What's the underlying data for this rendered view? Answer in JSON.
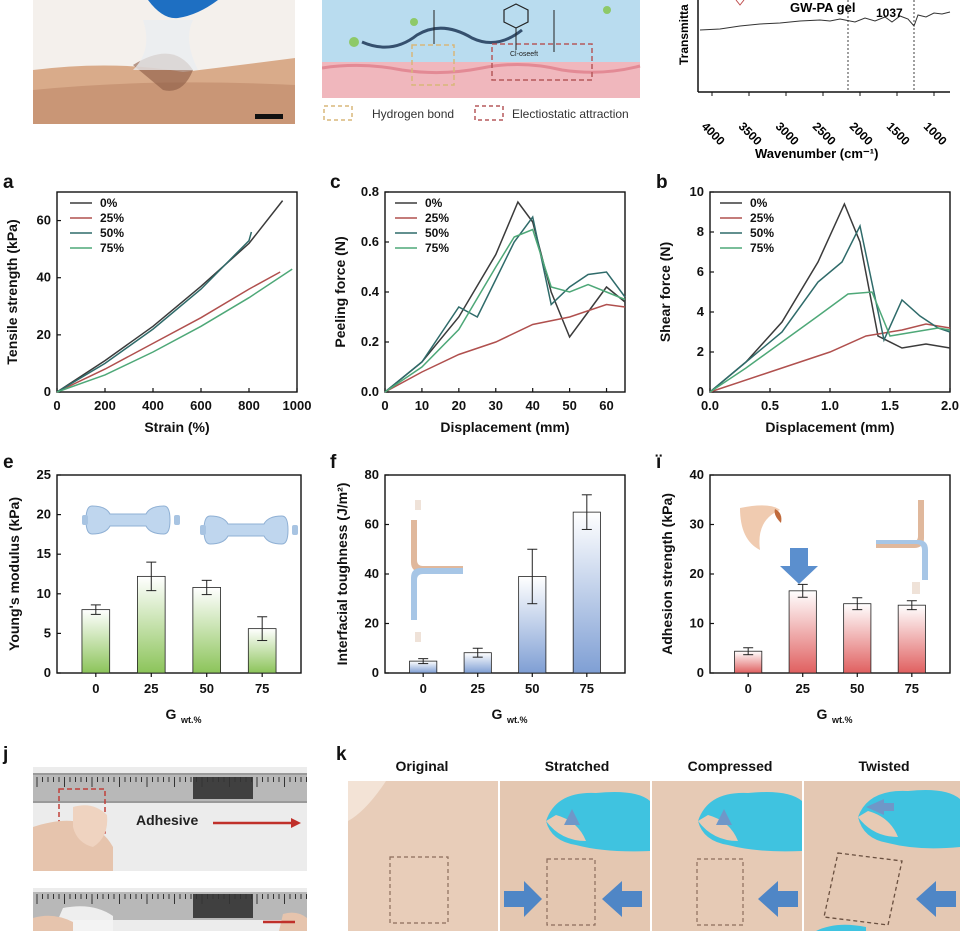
{
  "top_row": {
    "schematic_legend": {
      "hbond": "Hydrogen bond",
      "electrostatic": "Electiostatic attraction"
    },
    "schematic_text": "Cl-oseeft",
    "ftir": {
      "title": "GW-PA gel",
      "peak": "1037",
      "ylabel": "Transmitta",
      "xlabel": "Wavenumber (cm⁻¹)",
      "xticks": [
        "4000",
        "3500",
        "3000",
        "2500",
        "2000",
        "1500",
        "1000"
      ]
    }
  },
  "panels": {
    "a": "a",
    "c": "c",
    "b": "b",
    "e": "e",
    "f": "f",
    "i": "ї",
    "j": "j",
    "k": "k"
  },
  "legend": [
    "0%",
    "25%",
    "50%",
    "75%"
  ],
  "series_colors": [
    "#3b3b3b",
    "#b0504e",
    "#2f6b6a",
    "#4ea878"
  ],
  "chart_data": [
    {
      "id": "a",
      "type": "line",
      "xlabel": "Strain (%)",
      "ylabel": "Tensile strength (kPa)",
      "xlim": [
        0,
        1000
      ],
      "ylim": [
        0,
        70
      ],
      "xticks": [
        0,
        200,
        400,
        600,
        800,
        1000
      ],
      "yticks": [
        0,
        20,
        40,
        60
      ],
      "series": [
        {
          "name": "0%",
          "x": [
            0,
            200,
            400,
            600,
            800,
            940
          ],
          "y": [
            0,
            11,
            23,
            37,
            52,
            67
          ]
        },
        {
          "name": "25%",
          "x": [
            0,
            200,
            400,
            600,
            800,
            930
          ],
          "y": [
            0,
            8,
            17,
            26,
            36,
            42
          ]
        },
        {
          "name": "50%",
          "x": [
            0,
            200,
            400,
            600,
            800,
            810
          ],
          "y": [
            0,
            10,
            22,
            36,
            53,
            56
          ]
        },
        {
          "name": "75%",
          "x": [
            0,
            200,
            400,
            600,
            800,
            980
          ],
          "y": [
            0,
            6,
            14,
            23,
            33,
            43
          ]
        }
      ]
    },
    {
      "id": "c",
      "type": "line",
      "xlabel": "Displacement (mm)",
      "ylabel": "Peeling force (N)",
      "xlim": [
        0,
        65
      ],
      "ylim": [
        0,
        0.8
      ],
      "xticks": [
        0,
        10,
        20,
        30,
        40,
        50,
        60
      ],
      "yticks": [
        "0.0",
        "0.2",
        "0.4",
        "0.6",
        "0.8"
      ],
      "series": [
        {
          "name": "0%",
          "x": [
            0,
            10,
            20,
            30,
            36,
            40,
            45,
            50,
            55,
            60,
            65
          ],
          "y": [
            0,
            0.12,
            0.3,
            0.55,
            0.76,
            0.68,
            0.4,
            0.22,
            0.32,
            0.42,
            0.36
          ]
        },
        {
          "name": "25%",
          "x": [
            0,
            10,
            20,
            30,
            40,
            50,
            60,
            65
          ],
          "y": [
            0,
            0.08,
            0.15,
            0.2,
            0.27,
            0.3,
            0.35,
            0.34
          ]
        },
        {
          "name": "50%",
          "x": [
            0,
            10,
            20,
            25,
            30,
            35,
            40,
            45,
            50,
            55,
            60,
            65
          ],
          "y": [
            0,
            0.12,
            0.34,
            0.3,
            0.45,
            0.6,
            0.7,
            0.35,
            0.42,
            0.47,
            0.48,
            0.38
          ]
        },
        {
          "name": "75%",
          "x": [
            0,
            10,
            20,
            30,
            35,
            40,
            45,
            50,
            55,
            60,
            65
          ],
          "y": [
            0,
            0.1,
            0.25,
            0.5,
            0.62,
            0.65,
            0.42,
            0.4,
            0.43,
            0.4,
            0.37
          ]
        }
      ]
    },
    {
      "id": "b",
      "type": "line",
      "xlabel": "Displacement (mm)",
      "ylabel": "Shear force (N)",
      "xlim": [
        0,
        2
      ],
      "ylim": [
        0,
        10
      ],
      "xticks": [
        "0.0",
        "0.5",
        "1.0",
        "1.5",
        "2.0"
      ],
      "yticks": [
        0,
        2,
        4,
        6,
        8,
        10
      ],
      "series": [
        {
          "name": "0%",
          "x": [
            0,
            0.3,
            0.6,
            0.9,
            1.12,
            1.25,
            1.4,
            1.6,
            1.8,
            2.0
          ],
          "y": [
            0,
            1.5,
            3.5,
            6.5,
            9.4,
            7.5,
            2.8,
            2.2,
            2.4,
            2.2
          ]
        },
        {
          "name": "25%",
          "x": [
            0,
            0.5,
            1.0,
            1.3,
            1.6,
            1.8,
            2.0
          ],
          "y": [
            0,
            1.0,
            2.0,
            2.8,
            3.1,
            3.4,
            3.2
          ]
        },
        {
          "name": "50%",
          "x": [
            0,
            0.3,
            0.6,
            0.9,
            1.1,
            1.25,
            1.45,
            1.6,
            1.75,
            1.9,
            2.0
          ],
          "y": [
            0,
            1.5,
            3.0,
            5.5,
            6.5,
            8.3,
            2.6,
            4.6,
            3.8,
            3.2,
            3.0
          ]
        },
        {
          "name": "75%",
          "x": [
            0,
            0.3,
            0.6,
            0.9,
            1.15,
            1.35,
            1.5,
            1.7,
            1.9,
            2.0
          ],
          "y": [
            0,
            1.2,
            2.5,
            3.8,
            4.9,
            5.0,
            2.8,
            3.0,
            3.2,
            3.1
          ]
        }
      ]
    },
    {
      "id": "e",
      "type": "bar",
      "xlabel": "G",
      "xlabel_sub": "wt.%",
      "ylabel": "Young's modulus (kPa)",
      "categories": [
        "0",
        "25",
        "50",
        "75"
      ],
      "values": [
        8.0,
        12.2,
        10.8,
        5.6
      ],
      "errors": [
        0.6,
        1.8,
        0.9,
        1.5
      ],
      "ylim": [
        0,
        25
      ],
      "yticks": [
        0,
        5,
        10,
        15,
        20,
        25
      ],
      "color": "#8cc45a"
    },
    {
      "id": "f",
      "type": "bar",
      "xlabel": "G",
      "xlabel_sub": "wt.%",
      "ylabel": "Interfacial toughness (J/m²)",
      "categories": [
        "0",
        "25",
        "50",
        "75"
      ],
      "values": [
        4.8,
        8.2,
        39.0,
        65.0
      ],
      "errors": [
        1.0,
        1.8,
        11.0,
        7.0
      ],
      "ylim": [
        0,
        80
      ],
      "yticks": [
        0,
        20,
        40,
        60,
        80
      ],
      "color": "#7f9fd4"
    },
    {
      "id": "i",
      "type": "bar",
      "xlabel": "G",
      "xlabel_sub": "wt.%",
      "ylabel": "Adhesion strength (kPa)",
      "categories": [
        "0",
        "25",
        "50",
        "75"
      ],
      "values": [
        4.4,
        16.6,
        14.0,
        13.7
      ],
      "errors": [
        0.7,
        1.3,
        1.2,
        0.9
      ],
      "ylim": [
        0,
        40
      ],
      "yticks": [
        0,
        10,
        20,
        30,
        40
      ],
      "color": "#e06060"
    }
  ],
  "photo_j": {
    "label": "Adhesive"
  },
  "photo_k": {
    "captions": [
      "Original",
      "Stratched",
      "Compressed",
      "Twisted"
    ]
  }
}
